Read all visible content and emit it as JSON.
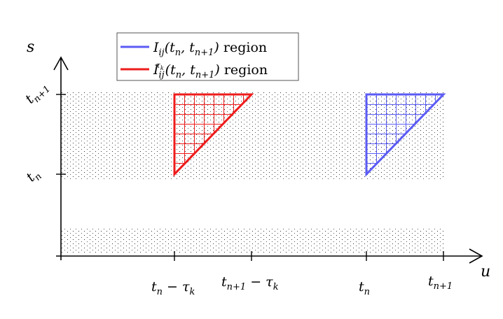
{
  "axes": {
    "s_label": "s",
    "u_label": "u"
  },
  "s_ticks": {
    "tn": "t",
    "tn_sub": "n",
    "tn1": "t",
    "tn1_sub": "n+1"
  },
  "u_ticks": {
    "tn_minus_tau": {
      "t": "t",
      "sub": "n",
      "rest": " − τ",
      "rest_sub": "k"
    },
    "tn1_minus_tau": {
      "t": "t",
      "sub": "n+1",
      "rest": " − τ",
      "rest_sub": "k"
    },
    "tn": {
      "t": "t",
      "sub": "n"
    },
    "tn1": {
      "t": "t",
      "sub": "n+1"
    }
  },
  "legend": {
    "blue": {
      "color": "#5b5bf5",
      "I": "I",
      "sub": "ij",
      "args_open": "(t",
      "arg1_sub": "n",
      "comma": ", t",
      "arg2_sub": "n+1",
      "args_close": ")",
      "word": " region"
    },
    "red": {
      "color": "#ee1c1c",
      "I": "I",
      "sub": "ij",
      "sup": "τ",
      "sup_sub": "k",
      "args_open": "(t",
      "arg1_sub": "n",
      "comma": ", t",
      "arg2_sub": "n+1",
      "args_close": ")",
      "word": " region"
    }
  }
}
